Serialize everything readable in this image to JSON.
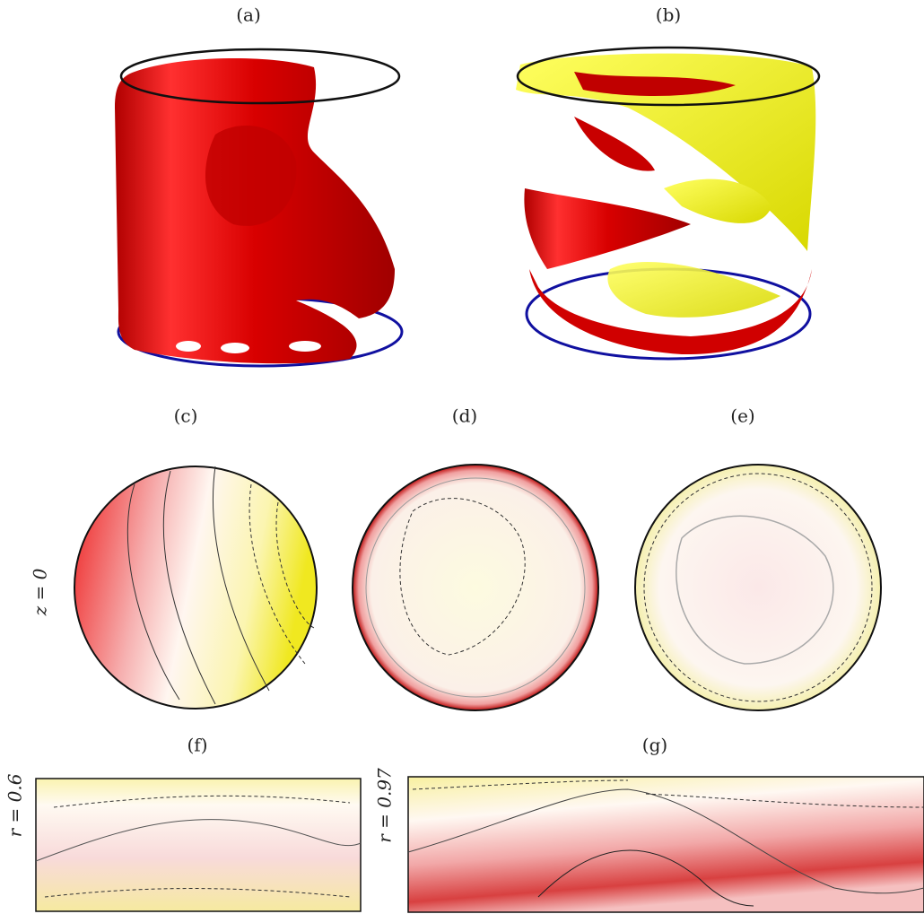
{
  "panels": [
    {
      "label": "(a)"
    },
    {
      "label": "(b)"
    },
    {
      "label": "(c)"
    },
    {
      "label": "(d)"
    },
    {
      "label": "(e)"
    },
    {
      "label": "(f)"
    },
    {
      "label": "(g)"
    }
  ],
  "row_labels": [
    "z = 0",
    "r = 0.6",
    "r = 0.97"
  ]
}
